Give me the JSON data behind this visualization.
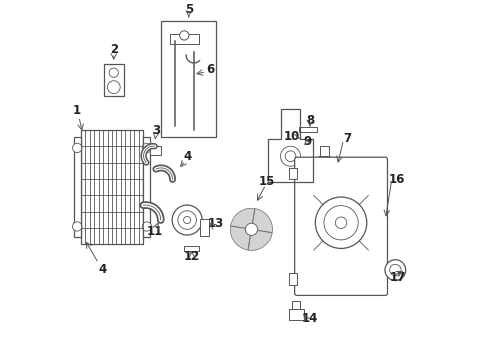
{
  "background_color": "#ffffff",
  "line_color": "#555555",
  "label_color": "#222222",
  "label_fontsize": 8.5
}
